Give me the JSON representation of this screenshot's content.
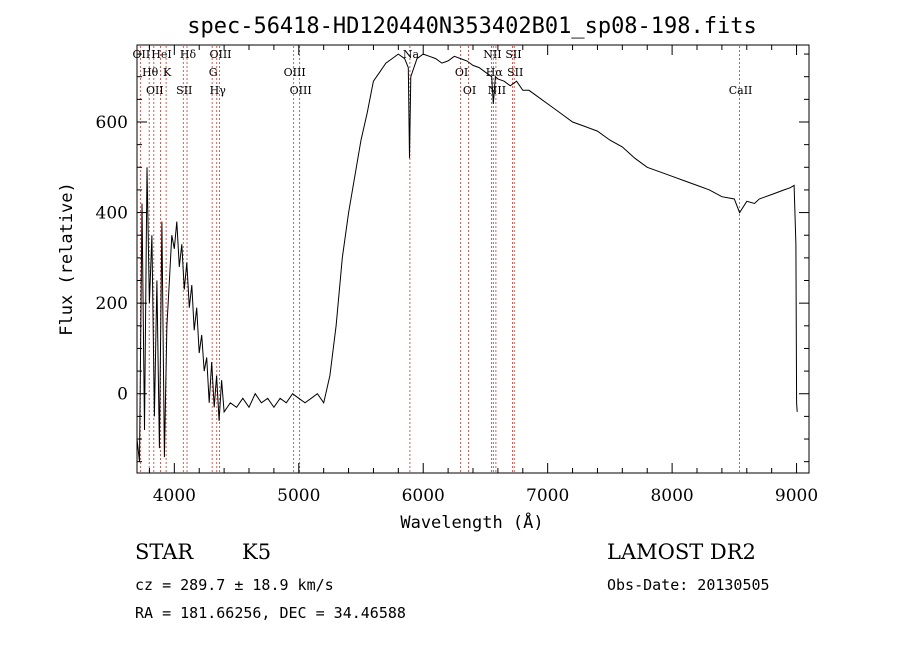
{
  "chart_data": {
    "type": "line",
    "title": "spec-56418-HD120440N353402B01_sp08-198.fits",
    "xlabel": "Wavelength (Å)",
    "ylabel": "Flux (relative)",
    "xlim": [
      3700,
      9100
    ],
    "ylim": [
      -175,
      770
    ],
    "xticks": [
      4000,
      5000,
      6000,
      7000,
      8000,
      9000
    ],
    "yticks": [
      0,
      200,
      400,
      600
    ],
    "grid": false,
    "series": [
      {
        "x": [
          3700,
          3720,
          3740,
          3760,
          3780,
          3800,
          3820,
          3840,
          3860,
          3880,
          3900,
          3920,
          3940,
          3960,
          3980,
          4000,
          4020,
          4040,
          4060,
          4080,
          4100,
          4120,
          4140,
          4160,
          4180,
          4200,
          4220,
          4240,
          4260,
          4280,
          4300,
          4320,
          4340,
          4360,
          4380,
          4400,
          4450,
          4500,
          4550,
          4600,
          4650,
          4700,
          4750,
          4800,
          4850,
          4900,
          4950,
          5000,
          5050,
          5100,
          5150,
          5200,
          5250,
          5300,
          5350,
          5400,
          5450,
          5500,
          5550,
          5600,
          5650,
          5700,
          5750,
          5800,
          5850,
          5880,
          5890,
          5900,
          5950,
          6000,
          6050,
          6100,
          6150,
          6200,
          6250,
          6300,
          6350,
          6400,
          6450,
          6500,
          6550,
          6563,
          6580,
          6600,
          6650,
          6700,
          6750,
          6800,
          6850,
          6900,
          6950,
          7000,
          7100,
          7200,
          7300,
          7400,
          7500,
          7600,
          7700,
          7800,
          7900,
          8000,
          8100,
          8200,
          8300,
          8400,
          8500,
          8542,
          8600,
          8662,
          8700,
          8800,
          8900,
          8950,
          8980,
          8995,
          9000,
          9005
        ],
        "y": [
          -100,
          -150,
          420,
          -80,
          500,
          200,
          350,
          -50,
          250,
          -120,
          380,
          -140,
          150,
          250,
          350,
          320,
          380,
          280,
          330,
          230,
          290,
          190,
          240,
          140,
          190,
          90,
          130,
          50,
          80,
          -20,
          70,
          -30,
          40,
          -60,
          30,
          -40,
          -20,
          -30,
          -10,
          -30,
          0,
          -20,
          -10,
          -30,
          -10,
          -20,
          0,
          -10,
          -20,
          -10,
          0,
          -20,
          40,
          150,
          300,
          400,
          480,
          560,
          620,
          690,
          710,
          730,
          740,
          750,
          740,
          720,
          520,
          700,
          740,
          750,
          745,
          740,
          730,
          735,
          745,
          740,
          735,
          725,
          720,
          710,
          700,
          640,
          700,
          695,
          690,
          680,
          690,
          670,
          670,
          660,
          650,
          640,
          620,
          600,
          590,
          580,
          560,
          545,
          520,
          500,
          490,
          480,
          470,
          460,
          450,
          435,
          430,
          400,
          425,
          420,
          430,
          440,
          450,
          455,
          460,
          330,
          -20,
          -40
        ]
      }
    ],
    "line_markers": [
      {
        "wavelength": 3727,
        "label": "OII"
      },
      {
        "wavelength": 3798,
        "label": "Hθ"
      },
      {
        "wavelength": 3835,
        "label": "OII"
      },
      {
        "wavelength": 3889,
        "label": "HeI"
      },
      {
        "wavelength": 3934,
        "label": "K"
      },
      {
        "wavelength": 4072,
        "label": "SII"
      },
      {
        "wavelength": 4102,
        "label": "Hδ"
      },
      {
        "wavelength": 4304,
        "label": "G"
      },
      {
        "wavelength": 4341,
        "label": "Hγ"
      },
      {
        "wavelength": 4363,
        "label": "OIII"
      },
      {
        "wavelength": 4959,
        "label": "OIII"
      },
      {
        "wavelength": 5007,
        "label": "OIII"
      },
      {
        "wavelength": 5893,
        "label": "Na"
      },
      {
        "wavelength": 6300,
        "label": "OI"
      },
      {
        "wavelength": 6364,
        "label": "OI"
      },
      {
        "wavelength": 6548,
        "label": "NII"
      },
      {
        "wavelength": 6563,
        "label": "Hα"
      },
      {
        "wavelength": 6584,
        "label": "NII"
      },
      {
        "wavelength": 6717,
        "label": "SII"
      },
      {
        "wavelength": 6731,
        "label": "SII"
      },
      {
        "wavelength": 8542,
        "label": "CaII"
      }
    ]
  },
  "info": {
    "object_type": "STAR",
    "subclass": "K5",
    "survey": "LAMOST DR2",
    "cz": "cz = 289.7 ± 18.9 km/s",
    "obs_date": "Obs-Date: 20130505",
    "coords": "RA = 181.66256, DEC =  34.46588"
  }
}
